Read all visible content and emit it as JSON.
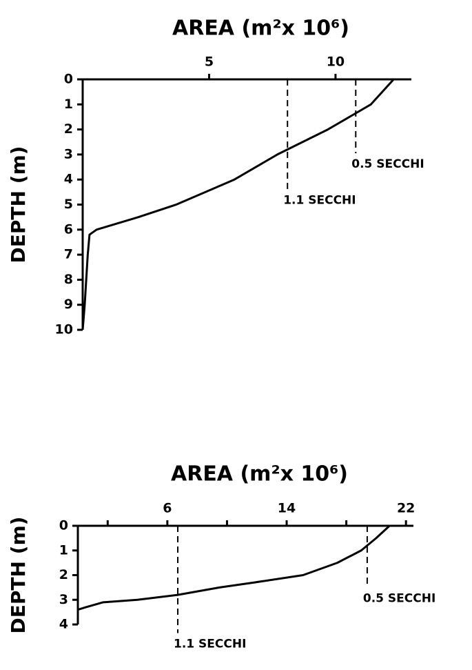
{
  "chart_data": [
    {
      "type": "line",
      "title": "AREA (m²x 10⁶)",
      "y_label": "DEPTH (m)",
      "xlim": [
        0,
        13
      ],
      "xticks": [
        5,
        10
      ],
      "ylim": [
        0,
        10
      ],
      "yticks": [
        0,
        1,
        2,
        3,
        4,
        5,
        6,
        7,
        8,
        9,
        10
      ],
      "y_inverted": true,
      "color": "#000000",
      "series": [
        {
          "x": [
            12.3,
            11.4,
            9.7,
            8.1,
            7.7,
            6.0,
            3.7,
            2.2,
            0.55,
            0.27,
            0.2,
            0.14,
            0.08,
            0
          ],
          "values": [
            0,
            1,
            2,
            2.8,
            3,
            4,
            5,
            5.5,
            6,
            6.2,
            7,
            8,
            9,
            10
          ]
        }
      ],
      "annotations": [
        {
          "text": "1.1 SECCHI",
          "x": 8.1,
          "depth": 4.4
        },
        {
          "text": "0.5 SECCHI",
          "x": 10.8,
          "depth": 2.95
        }
      ]
    },
    {
      "type": "line",
      "title": "AREA (m²x 10⁶)",
      "y_label": "DEPTH (m)",
      "xlim": [
        0,
        22.5
      ],
      "xticks": [
        6,
        14,
        22
      ],
      "minor_xticks": [
        2,
        10,
        18
      ],
      "ylim": [
        0,
        4
      ],
      "yticks": [
        0,
        1,
        2,
        3,
        4
      ],
      "y_inverted": true,
      "color": "#000000",
      "series": [
        {
          "x": [
            20.9,
            20.0,
            19.0,
            17.4,
            15.1,
            11.8,
            9.5,
            6.7,
            4.0,
            1.7,
            0.55,
            0
          ],
          "values": [
            0,
            0.5,
            1,
            1.5,
            2,
            2.3,
            2.5,
            2.8,
            3,
            3.1,
            3.3,
            3.4
          ]
        }
      ],
      "annotations": [
        {
          "text": "1.1 SECCHI",
          "x": 6.7,
          "depth": 4.35
        },
        {
          "text": "0.5 SECCHI",
          "x": 19.4,
          "depth": 2.5
        }
      ]
    }
  ]
}
